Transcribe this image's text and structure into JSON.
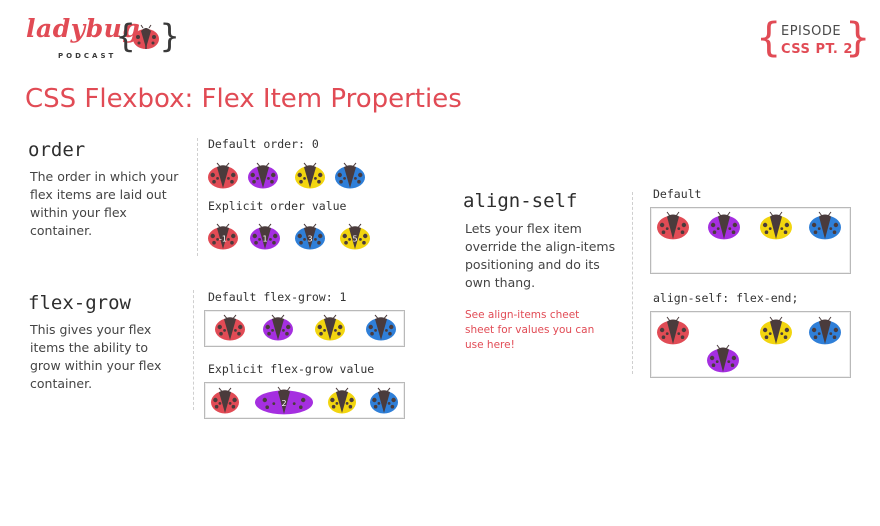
{
  "header": {
    "logo_text": "ladybug",
    "logo_subtitle": "PODCAST",
    "episode_label": "EPISODE",
    "episode_name": "CSS PT. 2"
  },
  "title": "CSS Flexbox: Flex Item Properties",
  "colors": {
    "red": "#e14b55",
    "purple": "#a52fe0",
    "yellow": "#f2d50f",
    "blue": "#2f7fd8",
    "body": "#4a3b3c"
  },
  "sections": {
    "order": {
      "name": "order",
      "description": "The order in which your flex items are laid out within your flex container.",
      "example1_label": "Default order: 0",
      "example2_label": "Explicit order value",
      "example2_numbers": [
        "-1",
        "1",
        "3",
        "5"
      ]
    },
    "flex_grow": {
      "name": "flex-grow",
      "description": "This gives your flex items the ability to grow within your flex container.",
      "example1_label": "Default flex-grow: 1",
      "example2_label": "Explicit flex-grow value",
      "example2_number": "2"
    },
    "align_self": {
      "name": "align-self",
      "description": "Lets your flex item override the align-items positioning and do its own thang.",
      "note": "See align-items cheet sheet for values you can use here!",
      "example1_label": "Default",
      "example2_label": "align-self: flex-end;"
    }
  }
}
